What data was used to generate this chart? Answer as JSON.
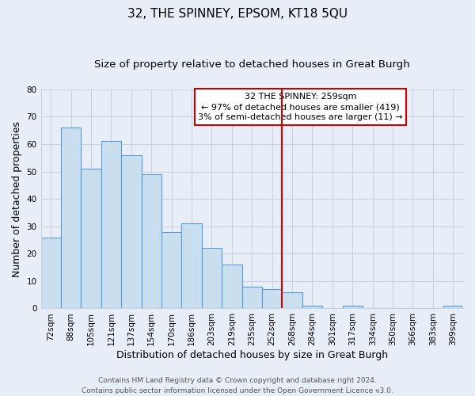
{
  "title": "32, THE SPINNEY, EPSOM, KT18 5QU",
  "subtitle": "Size of property relative to detached houses in Great Burgh",
  "xlabel": "Distribution of detached houses by size in Great Burgh",
  "ylabel": "Number of detached properties",
  "bar_labels": [
    "72sqm",
    "88sqm",
    "105sqm",
    "121sqm",
    "137sqm",
    "154sqm",
    "170sqm",
    "186sqm",
    "203sqm",
    "219sqm",
    "235sqm",
    "252sqm",
    "268sqm",
    "284sqm",
    "301sqm",
    "317sqm",
    "334sqm",
    "350sqm",
    "366sqm",
    "383sqm",
    "399sqm"
  ],
  "bar_values": [
    26,
    66,
    51,
    61,
    56,
    49,
    28,
    31,
    22,
    16,
    8,
    7,
    6,
    1,
    0,
    1,
    0,
    0,
    0,
    0,
    1
  ],
  "bar_color": "#c9dff0",
  "bar_edge_color": "#5b9bd5",
  "vline_x_index": 11.5,
  "vline_color": "#cc0000",
  "ylim": [
    0,
    80
  ],
  "yticks": [
    0,
    10,
    20,
    30,
    40,
    50,
    60,
    70,
    80
  ],
  "annotation_title": "32 THE SPINNEY: 259sqm",
  "annotation_line1": "← 97% of detached houses are smaller (419)",
  "annotation_line2": "3% of semi-detached houses are larger (11) →",
  "annotation_box_color": "#ffffff",
  "annotation_box_edge": "#cc0000",
  "footer_line1": "Contains HM Land Registry data © Crown copyright and database right 2024.",
  "footer_line2": "Contains public sector information licensed under the Open Government Licence v3.0.",
  "bg_color": "#e8eef7",
  "grid_color": "#c8d4e3",
  "title_fontsize": 11,
  "subtitle_fontsize": 9.5,
  "axis_label_fontsize": 9,
  "tick_fontsize": 7.5,
  "footer_fontsize": 6.5,
  "annotation_fontsize": 8
}
